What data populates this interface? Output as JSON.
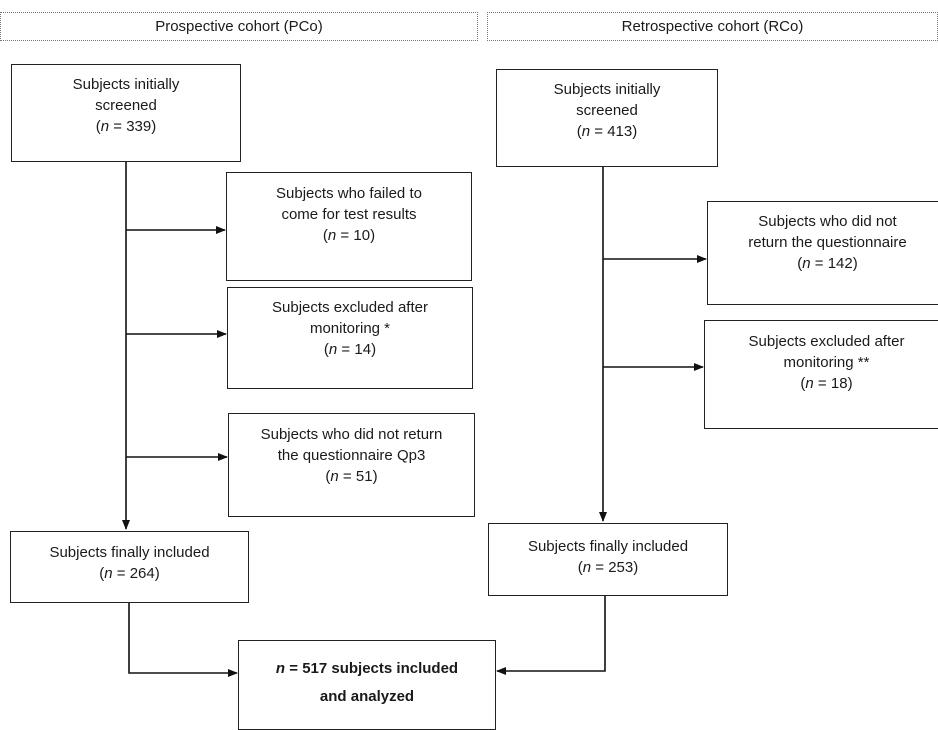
{
  "headers": {
    "prospective": "Prospective cohort (PCo)",
    "retrospective": "Retrospective cohort (RCo)"
  },
  "prospective": {
    "screened": {
      "lines": [
        "Subjects initially",
        "screened"
      ],
      "n": "339"
    },
    "failed_results": {
      "lines": [
        "Subjects who failed to",
        "come for test results"
      ],
      "n": "10"
    },
    "excluded": {
      "lines": [
        "Subjects excluded after",
        "monitoring *"
      ],
      "n": "14"
    },
    "no_questionnaire": {
      "lines": [
        "Subjects who did not return",
        "the questionnaire Qp3"
      ],
      "n": "51"
    },
    "included": {
      "lines": [
        "Subjects finally included"
      ],
      "n": "264"
    }
  },
  "retrospective": {
    "screened": {
      "lines": [
        "Subjects initially",
        "screened"
      ],
      "n": "413"
    },
    "no_questionnaire": {
      "lines": [
        "Subjects who did not",
        "return the questionnaire"
      ],
      "n": "142"
    },
    "excluded": {
      "lines": [
        "Subjects excluded after",
        "monitoring **"
      ],
      "n": "18"
    },
    "included": {
      "lines": [
        "Subjects finally included"
      ],
      "n": "253"
    }
  },
  "final": {
    "n_prefix": "n",
    "line1_rest": " = 517 subjects included",
    "line2": "and analyzed"
  },
  "n_symbol": "n",
  "n_eq": " = "
}
